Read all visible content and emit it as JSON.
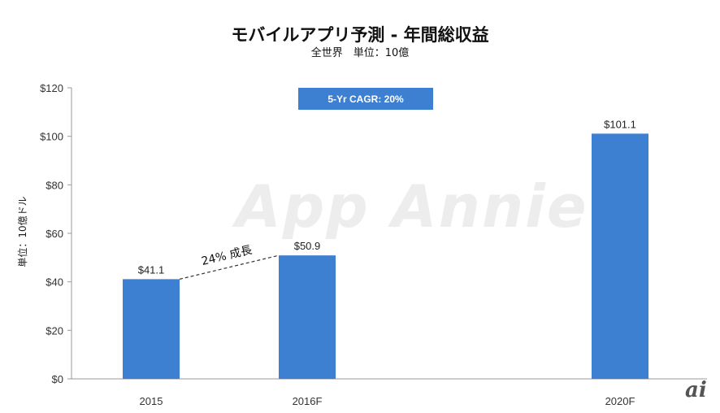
{
  "chart_data": {
    "type": "bar",
    "title": "モバイルアプリ予測 - 年間総収益",
    "subtitle": "全世界　単位：10億",
    "ylabel": "単位：10億ドル",
    "xlabel": "",
    "categories": [
      "2015",
      "2016F",
      "2020F"
    ],
    "values": [
      41.1,
      50.9,
      101.1
    ],
    "data_labels": [
      "$41.1",
      "$50.9",
      "$101.1"
    ],
    "ylim": [
      0,
      120
    ],
    "yticks": [
      0,
      20,
      40,
      60,
      80,
      100,
      120
    ],
    "ytick_labels": [
      "$0",
      "$20",
      "$40",
      "$60",
      "$80",
      "$100",
      "$120"
    ],
    "bar_color": "#3d7fd0",
    "grid": false,
    "annotations": {
      "cagr": "5-Yr CAGR: 20%",
      "growth": "24% 成長"
    },
    "watermark": "App Annie"
  },
  "brand": {
    "logo": "ai"
  }
}
